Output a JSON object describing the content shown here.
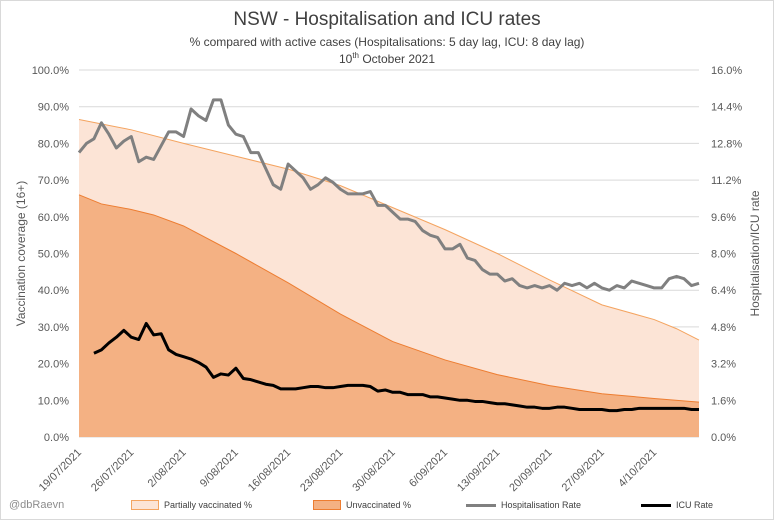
{
  "title": "NSW - Hospitalisation and ICU rates",
  "subtitle": "% compared with active cases (Hospitalisations: 5 day lag, ICU: 8 day lag)",
  "date_main": "10",
  "date_sup": "th",
  "date_rest": " October 2021",
  "credit": "@dbRaevn",
  "colors": {
    "partially_fill": "#fce4d6",
    "partially_edge": "#f4a460",
    "unvaccinated_fill": "#f4b183",
    "unvaccinated_edge": "#ed7d31",
    "hosp_line": "#808080",
    "icu_line": "#000000",
    "grid": "#d9d9d9",
    "axis_text": "#595959"
  },
  "chart_data": {
    "type": "area",
    "title": "NSW - Hospitalisation and ICU rates",
    "subtitle": "% compared with active cases (Hospitalisations: 5 day lag, ICU: 8 day lag)",
    "ylabel_left": "Vaccination coverage (16+)",
    "ylabel_right": "Hospitalisation/ICU rate",
    "ylim_left": [
      0,
      100
    ],
    "ylim_right": [
      0,
      16
    ],
    "grid": true,
    "legend_position": "bottom",
    "left_ticks": [
      "0.0%",
      "10.0%",
      "20.0%",
      "30.0%",
      "40.0%",
      "50.0%",
      "60.0%",
      "70.0%",
      "80.0%",
      "90.0%",
      "100.0%"
    ],
    "right_ticks": [
      "0.0%",
      "1.6%",
      "3.2%",
      "4.8%",
      "6.4%",
      "8.0%",
      "9.6%",
      "11.2%",
      "12.8%",
      "14.4%",
      "16.0%"
    ],
    "x_tick_labels": [
      "19/07/2021",
      "26/07/2021",
      "2/08/2021",
      "9/08/2021",
      "16/08/2021",
      "23/08/2021",
      "30/08/2021",
      "6/09/2021",
      "13/09/2021",
      "20/09/2021",
      "27/09/2021",
      "4/10/2021"
    ],
    "x_start_date": "19/07/2021",
    "x_end_date": "10/10/2021",
    "series": [
      {
        "name": "Partially vaccinated %",
        "axis": "left",
        "style": "area",
        "x": [
          0,
          7,
          14,
          21,
          28,
          35,
          42,
          49,
          56,
          63,
          70,
          77,
          80,
          83
        ],
        "values": [
          86.5,
          83.7,
          80.0,
          76.5,
          73.0,
          68.5,
          62.5,
          56.5,
          50.0,
          42.8,
          36.0,
          32.0,
          29.5,
          26.4
        ]
      },
      {
        "name": "Unvaccinated %",
        "axis": "left",
        "style": "area",
        "x": [
          0,
          3,
          7,
          10,
          14,
          21,
          28,
          35,
          42,
          49,
          56,
          63,
          70,
          77,
          83
        ],
        "values": [
          66.0,
          63.5,
          62.0,
          60.5,
          57.5,
          50.0,
          42.0,
          33.5,
          26.0,
          21.0,
          17.0,
          14.0,
          11.8,
          10.5,
          9.5
        ]
      },
      {
        "name": "Hospitalisation Rate",
        "axis": "right",
        "style": "line",
        "x": [
          0,
          1,
          2,
          3,
          4,
          5,
          6,
          7,
          8,
          9,
          10,
          11,
          12,
          13,
          14,
          15,
          16,
          17,
          18,
          19,
          20,
          21,
          22,
          23,
          24,
          25,
          26,
          27,
          28,
          29,
          30,
          31,
          32,
          33,
          34,
          35,
          36,
          37,
          38,
          39,
          40,
          41,
          42,
          43,
          44,
          45,
          46,
          47,
          48,
          49,
          50,
          51,
          52,
          53,
          54,
          55,
          56,
          57,
          58,
          59,
          60,
          61,
          62,
          63,
          64,
          65,
          66,
          67,
          68,
          69,
          70,
          71,
          72,
          73,
          74,
          75,
          76,
          77,
          78,
          79,
          80,
          81,
          82,
          83
        ],
        "values": [
          12.4,
          12.8,
          13.0,
          13.7,
          13.2,
          12.6,
          12.9,
          13.1,
          12.0,
          12.2,
          12.1,
          12.7,
          13.3,
          13.3,
          13.1,
          14.3,
          14.0,
          13.8,
          14.7,
          14.7,
          13.6,
          13.2,
          13.1,
          12.4,
          12.4,
          11.7,
          11.0,
          10.8,
          11.9,
          11.6,
          11.3,
          10.8,
          11.0,
          11.3,
          11.1,
          10.8,
          10.6,
          10.6,
          10.6,
          10.7,
          10.1,
          10.1,
          9.8,
          9.5,
          9.5,
          9.4,
          9.0,
          8.8,
          8.7,
          8.2,
          8.2,
          8.4,
          7.8,
          7.7,
          7.3,
          7.1,
          7.1,
          6.8,
          6.9,
          6.6,
          6.5,
          6.6,
          6.5,
          6.6,
          6.4,
          6.7,
          6.6,
          6.7,
          6.5,
          6.7,
          6.5,
          6.4,
          6.6,
          6.5,
          6.8,
          6.7,
          6.6,
          6.5,
          6.5,
          6.9,
          7.0,
          6.9,
          6.6,
          6.7
        ]
      },
      {
        "name": "ICU Rate",
        "axis": "right",
        "style": "line",
        "x": [
          0,
          1,
          2,
          3,
          4,
          5,
          6,
          7,
          8,
          9,
          10,
          11,
          12,
          13,
          14,
          15,
          16,
          17,
          18,
          19,
          20,
          21,
          22,
          23,
          24,
          25,
          26,
          27,
          28,
          29,
          30,
          31,
          32,
          33,
          34,
          35,
          36,
          37,
          38,
          39,
          40,
          41,
          42,
          43,
          44,
          45,
          46,
          47,
          48,
          49,
          50,
          51,
          52,
          53,
          54,
          55,
          56,
          57,
          58,
          59,
          60,
          61,
          62,
          63,
          64,
          65,
          66,
          67,
          68,
          69,
          70,
          71,
          72,
          73,
          74,
          75,
          76,
          77,
          78,
          79,
          80,
          81,
          82,
          83
        ],
        "values": [
          3.65,
          3.8,
          4.1,
          4.35,
          4.65,
          4.35,
          4.25,
          4.95,
          4.45,
          4.5,
          3.8,
          3.6,
          3.5,
          3.4,
          3.25,
          3.05,
          2.6,
          2.75,
          2.7,
          3.0,
          2.55,
          2.5,
          2.4,
          2.3,
          2.25,
          2.1,
          2.1,
          2.1,
          2.15,
          2.2,
          2.2,
          2.15,
          2.15,
          2.2,
          2.25,
          2.25,
          2.25,
          2.2,
          2.0,
          2.05,
          1.95,
          1.95,
          1.85,
          1.85,
          1.85,
          1.75,
          1.75,
          1.7,
          1.65,
          1.6,
          1.6,
          1.55,
          1.55,
          1.5,
          1.45,
          1.45,
          1.4,
          1.35,
          1.3,
          1.3,
          1.25,
          1.25,
          1.3,
          1.3,
          1.25,
          1.2,
          1.2,
          1.2,
          1.2,
          1.15,
          1.15,
          1.2,
          1.2,
          1.25,
          1.25,
          1.25,
          1.25,
          1.25,
          1.25,
          1.25,
          1.2,
          1.2,
          1.2,
          1.2
        ]
      }
    ]
  }
}
